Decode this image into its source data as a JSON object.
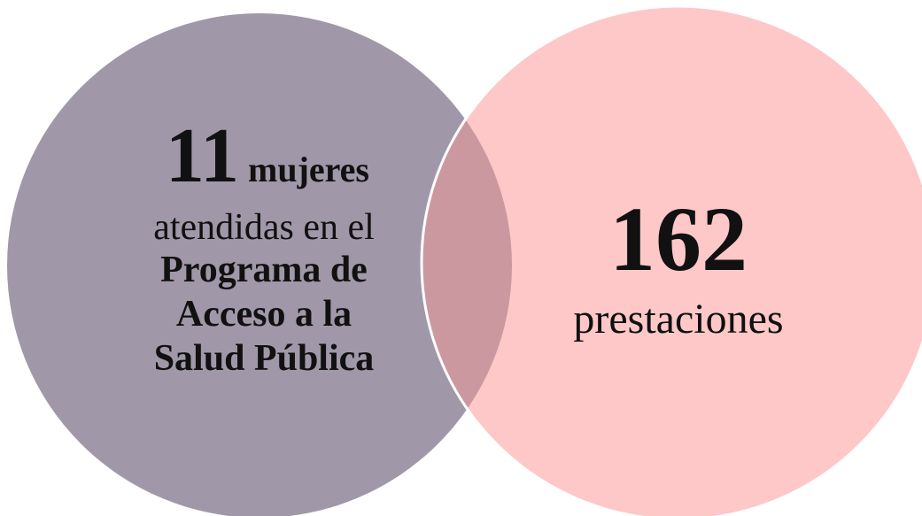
{
  "left": {
    "number": 11,
    "unit": "mujeres",
    "lines": [
      "atendidas en el",
      "Programa de",
      "Acceso a la",
      "Salud Pública"
    ]
  },
  "right": {
    "number": 162,
    "unit": "prestaciones"
  }
}
